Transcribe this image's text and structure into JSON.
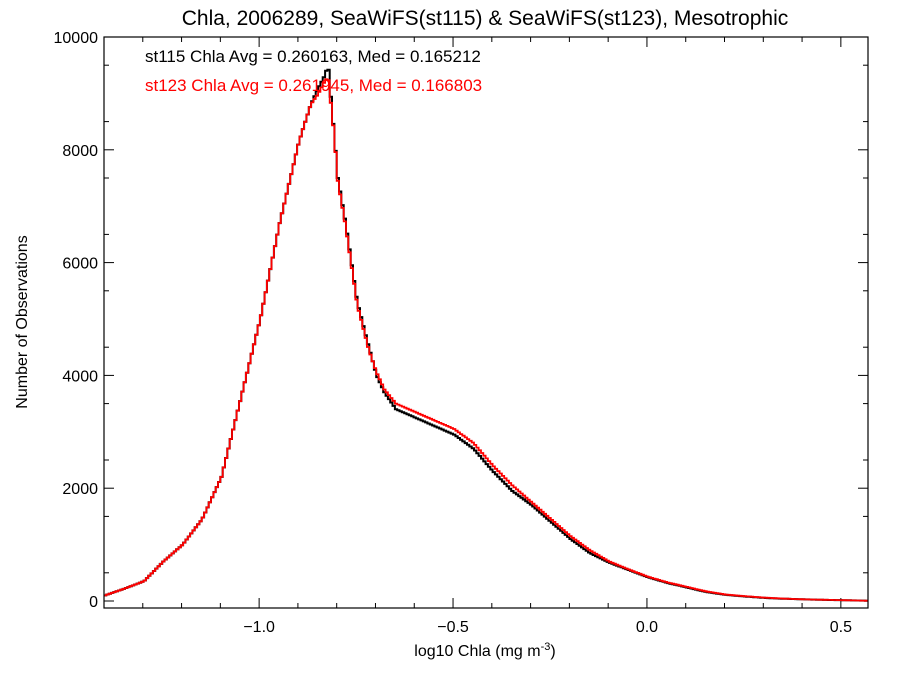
{
  "chart_data": {
    "type": "line",
    "title": "Chla, 2006289, SeaWiFS(st115) & SeaWiFS(st123), Mesotrophic",
    "xlabel_main": "log10 Chla (mg m",
    "xlabel_sup": "-3",
    "xlabel_close": ")",
    "ylabel": "Number of Observations",
    "xlim": [
      -1.4,
      0.57
    ],
    "ylim": [
      0,
      10000
    ],
    "x_ticks": [
      {
        "value": -1.0,
        "label": "−1.0"
      },
      {
        "value": -0.5,
        "label": "−0.5"
      },
      {
        "value": 0.0,
        "label": "0.0"
      },
      {
        "value": 0.5,
        "label": "0.5"
      }
    ],
    "y_ticks": [
      {
        "value": 0,
        "label": "0"
      },
      {
        "value": 2000,
        "label": "2000"
      },
      {
        "value": 4000,
        "label": "4000"
      },
      {
        "value": 6000,
        "label": "6000"
      },
      {
        "value": 8000,
        "label": "8000"
      },
      {
        "value": 10000,
        "label": "10000"
      }
    ],
    "annotations": [
      {
        "text": "st115 Chla Avg = 0.260163, Med = 0.165212",
        "color": "#000000"
      },
      {
        "text": "st123 Chla Avg = 0.261945, Med = 0.166803",
        "color": "#ff0000"
      }
    ],
    "series": [
      {
        "color": "#000000",
        "x": [
          -1.4,
          -1.35,
          -1.3,
          -1.25,
          -1.2,
          -1.15,
          -1.1,
          -1.05,
          -1.0,
          -0.95,
          -0.9,
          -0.87,
          -0.85,
          -0.835,
          -0.825,
          -0.81,
          -0.8,
          -0.78,
          -0.75,
          -0.72,
          -0.7,
          -0.68,
          -0.65,
          -0.6,
          -0.55,
          -0.5,
          -0.45,
          -0.4,
          -0.35,
          -0.3,
          -0.25,
          -0.2,
          -0.15,
          -0.1,
          -0.05,
          0.0,
          0.05,
          0.1,
          0.15,
          0.2,
          0.25,
          0.3,
          0.35,
          0.4,
          0.45,
          0.5,
          0.57
        ],
        "y": [
          100,
          220,
          350,
          700,
          1000,
          1450,
          2200,
          3600,
          5000,
          6700,
          8150,
          8800,
          9100,
          9300,
          9500,
          8300,
          7500,
          6700,
          5300,
          4500,
          4000,
          3700,
          3400,
          3250,
          3100,
          2950,
          2700,
          2300,
          1950,
          1700,
          1400,
          1100,
          850,
          680,
          550,
          420,
          320,
          240,
          160,
          110,
          80,
          55,
          40,
          30,
          20,
          15,
          5
        ]
      },
      {
        "color": "#ff0000",
        "x": [
          -1.4,
          -1.35,
          -1.3,
          -1.25,
          -1.2,
          -1.15,
          -1.1,
          -1.05,
          -1.0,
          -0.95,
          -0.9,
          -0.87,
          -0.85,
          -0.835,
          -0.825,
          -0.81,
          -0.8,
          -0.78,
          -0.75,
          -0.72,
          -0.7,
          -0.68,
          -0.65,
          -0.6,
          -0.55,
          -0.5,
          -0.45,
          -0.4,
          -0.35,
          -0.3,
          -0.25,
          -0.2,
          -0.15,
          -0.1,
          -0.05,
          0.0,
          0.05,
          0.1,
          0.15,
          0.2,
          0.25,
          0.3,
          0.35,
          0.4,
          0.45,
          0.5,
          0.57
        ],
        "y": [
          100,
          220,
          350,
          700,
          1000,
          1450,
          2200,
          3600,
          5000,
          6700,
          8150,
          8800,
          9000,
          9200,
          9300,
          8300,
          7450,
          6650,
          5250,
          4450,
          4050,
          3750,
          3500,
          3350,
          3200,
          3050,
          2800,
          2400,
          2050,
          1750,
          1450,
          1150,
          900,
          700,
          560,
          430,
          330,
          250,
          170,
          115,
          85,
          60,
          42,
          30,
          22,
          15,
          5
        ]
      }
    ]
  }
}
